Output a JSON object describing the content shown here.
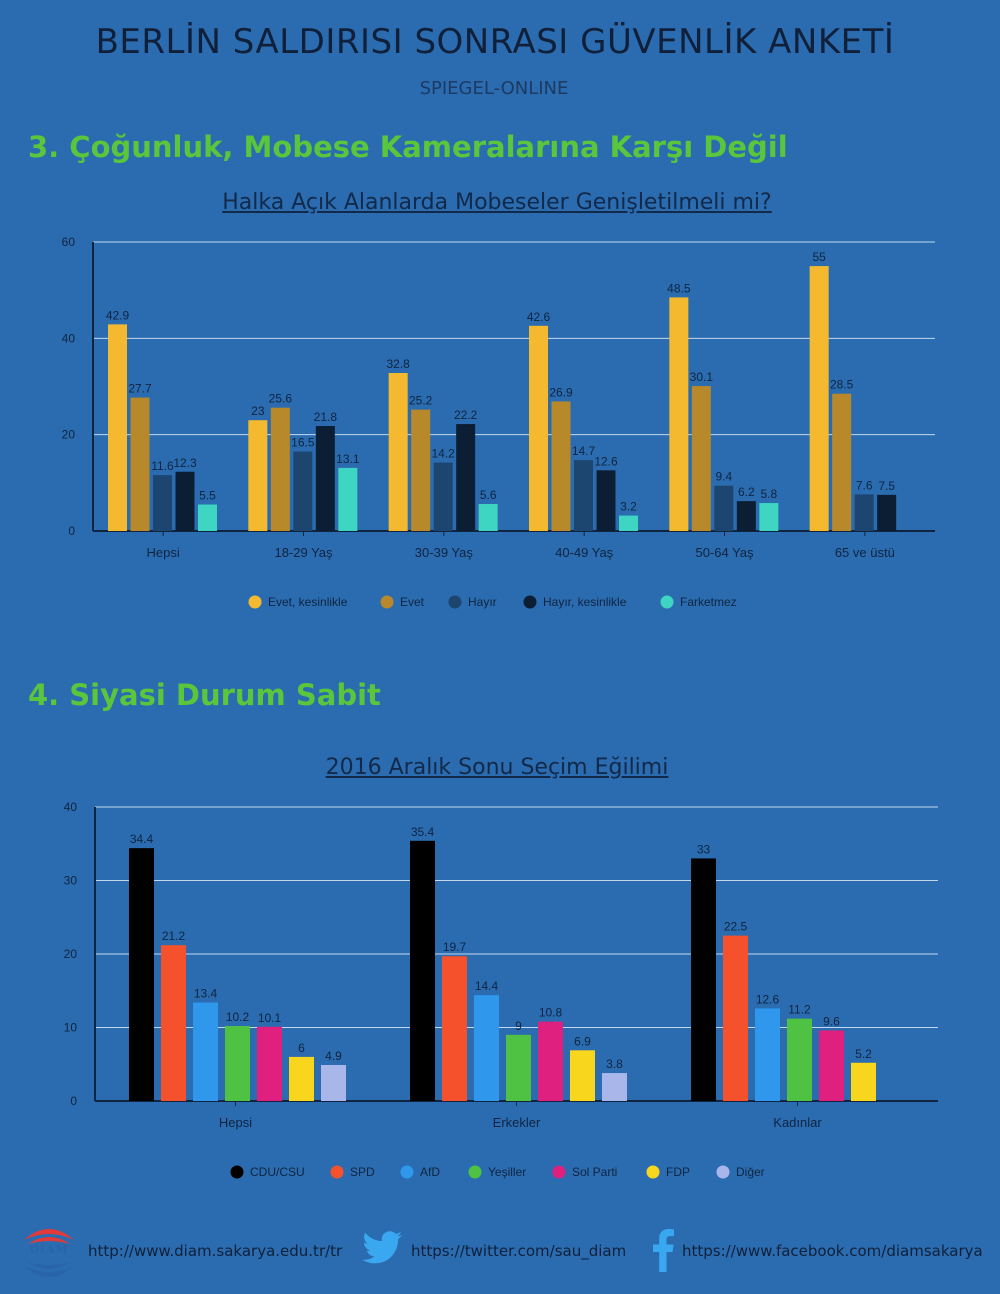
{
  "header": {
    "title": "BERLİN SALDIRISI SONRASI GÜVENLİK ANKETİ",
    "subtitle": "SPIEGEL-ONLINE"
  },
  "section3": {
    "heading": "3. Çoğunluk, Mobese Kameralarına Karşı Değil",
    "chart_title": "Halka Açık Alanlarda Mobeseler Genişletilmeli mi?"
  },
  "section4": {
    "heading": "4. Siyasi Durum Sabit",
    "chart_title": "2016 Aralık Sonu Seçim Eğilimi"
  },
  "chart_data": [
    {
      "type": "bar",
      "title": "Halka Açık Alanlarda Mobeseler Genişletilmeli mi?",
      "categories": [
        "Hepsi",
        "18-29 Yaş",
        "30-39 Yaş",
        "40-49 Yaş",
        "50-64 Yaş",
        "65 ve üstü"
      ],
      "ylim": [
        0,
        60
      ],
      "yticks": [
        0,
        20,
        40,
        60
      ],
      "grid": true,
      "legend_position": "bottom",
      "series": [
        {
          "name": "Evet, kesinlikle",
          "color": "#f4b92f",
          "values": [
            42.9,
            23,
            32.8,
            42.6,
            48.5,
            55
          ]
        },
        {
          "name": "Evet",
          "color": "#b8892a",
          "values": [
            27.7,
            25.6,
            25.2,
            26.9,
            30.1,
            28.5
          ]
        },
        {
          "name": "Hayır",
          "color": "#1c4670",
          "values": [
            11.6,
            16.5,
            14.2,
            14.7,
            9.4,
            7.6
          ]
        },
        {
          "name": "Hayır, kesinlikle",
          "color": "#0b1e33",
          "values": [
            12.3,
            21.8,
            22.2,
            12.6,
            6.2,
            7.5
          ]
        },
        {
          "name": "Farketmez",
          "color": "#3ed6c2",
          "values": [
            5.5,
            13.1,
            5.6,
            3.2,
            5.8,
            null
          ]
        }
      ]
    },
    {
      "type": "bar",
      "title": "2016 Aralık Sonu Seçim Eğilimi",
      "categories": [
        "Hepsi",
        "Erkekler",
        "Kadınlar"
      ],
      "ylim": [
        0,
        40
      ],
      "yticks": [
        0,
        10,
        20,
        30,
        40
      ],
      "grid": true,
      "legend_position": "bottom",
      "series": [
        {
          "name": "CDU/CSU",
          "color": "#000000",
          "values": [
            34.4,
            35.4,
            33
          ]
        },
        {
          "name": "SPD",
          "color": "#f4512c",
          "values": [
            21.2,
            19.7,
            22.5
          ]
        },
        {
          "name": "AfD",
          "color": "#2f98ec",
          "values": [
            13.4,
            14.4,
            12.6
          ]
        },
        {
          "name": "Yeşiller",
          "color": "#4fc244",
          "values": [
            10.2,
            9,
            11.2
          ]
        },
        {
          "name": "Sol Parti",
          "color": "#e0207f",
          "values": [
            10.1,
            10.8,
            9.6
          ]
        },
        {
          "name": "FDP",
          "color": "#f7d61d",
          "values": [
            6,
            6.9,
            5.2
          ]
        },
        {
          "name": "Diğer",
          "color": "#a9b6ea",
          "values": [
            4.9,
            3.8,
            null
          ]
        }
      ]
    }
  ],
  "footer": {
    "logo_text": "DİAM",
    "website": "http://www.diam.sakarya.edu.tr/tr",
    "twitter": "https://twitter.com/sau_diam",
    "facebook": "https://www.facebook.com/diamsakarya",
    "twitter_icon": "twitter-bird-icon",
    "facebook_icon": "facebook-f-icon"
  }
}
